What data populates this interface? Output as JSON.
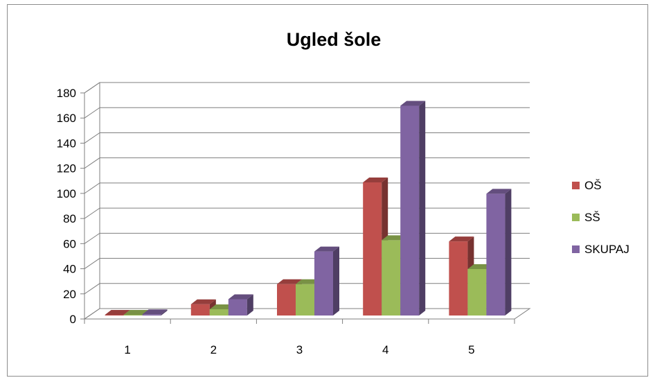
{
  "chart_data": {
    "type": "bar",
    "title": "Ugled šole",
    "categories": [
      "1",
      "2",
      "3",
      "4",
      "5"
    ],
    "series": [
      {
        "name": "OŠ",
        "color": "#c0504d",
        "values": [
          0,
          9,
          25,
          106,
          59
        ]
      },
      {
        "name": "SŠ",
        "color": "#9bbb59",
        "values": [
          0,
          5,
          25,
          60,
          37
        ]
      },
      {
        "name": "SKUPAJ",
        "color": "#8064a2",
        "values": [
          1,
          13,
          51,
          167,
          97
        ]
      }
    ],
    "ylim": [
      0,
      180
    ],
    "yticks": [
      0,
      20,
      40,
      60,
      80,
      100,
      120,
      140,
      160,
      180
    ],
    "grid": true,
    "legend": "right",
    "style": "3d-clustered-column"
  }
}
